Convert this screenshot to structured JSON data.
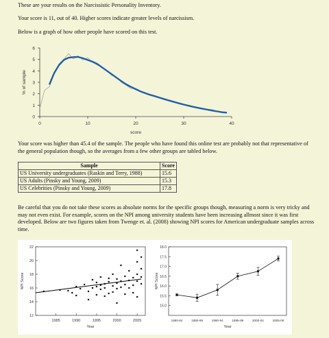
{
  "texts": {
    "intro": "These are your results on the Narcissistic Personality Inventory.",
    "score": "Your score is 11, out of 40. Higher scores indicate greater levels of narcissism.",
    "graph_intro": "Below is a graph of how other people have scored on this test.",
    "result": "Your score was higher than 45.4 of the sample. The people who have found this online test are probably not that representative of the general population though, so the averages from a few other groups are tabled below.",
    "careful": "Be careful that you do not take these scores as absolute norms for the specific groups though, measuring a norm is very tricky and may not even exist. For example, scores on the NPI among university students have been increasing allmost since it was first developed. Below are two figures taken from Twenge et. al. (2008) showing NPI scores for American undergraduate samples across time."
  },
  "table": {
    "headers": [
      "Sample",
      "Score"
    ],
    "rows": [
      [
        "US University undergraduates (Raskin and Terry, 1988)",
        "15.6"
      ],
      [
        "US Adults (Pinsky and Young, 2009)",
        "15.3"
      ],
      [
        "US Celebrities (Pinsky and Young, 2009)",
        "17.8"
      ]
    ]
  },
  "colors": {
    "page_bg": "#f4f4d8",
    "fit_line": "#1f5fa8",
    "raw_line": "#999999"
  },
  "chart_data": [
    {
      "type": "line",
      "xlabel": "score",
      "ylabel": "% of sample",
      "xlim": [
        0,
        40
      ],
      "ylim": [
        0,
        6
      ],
      "xticks": [
        0,
        10,
        20,
        30,
        40
      ],
      "yticks": [
        0,
        1,
        2,
        3,
        4,
        5,
        6
      ],
      "grid": false,
      "series": [
        {
          "role": "smoothed",
          "x": [
            2,
            3,
            4,
            5,
            6,
            7,
            8,
            9,
            10,
            11,
            12,
            13,
            14,
            15,
            16,
            17,
            18,
            19,
            20,
            21,
            22,
            23,
            24,
            25,
            26,
            27,
            28,
            29,
            30,
            31,
            32,
            33,
            34,
            35,
            36,
            37,
            38,
            39
          ],
          "y": [
            2.8,
            3.8,
            4.5,
            4.95,
            5.15,
            5.2,
            5.22,
            5.1,
            4.95,
            4.8,
            4.6,
            4.3,
            4.0,
            3.7,
            3.4,
            3.1,
            2.82,
            2.6,
            2.4,
            2.2,
            2.05,
            1.9,
            1.78,
            1.65,
            1.52,
            1.4,
            1.28,
            1.16,
            1.05,
            0.95,
            0.85,
            0.76,
            0.68,
            0.6,
            0.52,
            0.45,
            0.38,
            0.34
          ]
        },
        {
          "role": "raw",
          "x": [
            0,
            1,
            2,
            3,
            4,
            5,
            6,
            7,
            8,
            9,
            10,
            11,
            12,
            13,
            14,
            15,
            16,
            17,
            18,
            19,
            20,
            21,
            22,
            23,
            24,
            25,
            26,
            27,
            28,
            29,
            30,
            31,
            32,
            33,
            34,
            35,
            36,
            37,
            38,
            39
          ],
          "y": [
            0.7,
            2.3,
            2.6,
            3.7,
            4.6,
            5.0,
            5.5,
            5.05,
            5.3,
            4.95,
            5.15,
            4.75,
            4.5,
            4.35,
            4.0,
            3.6,
            3.45,
            3.0,
            2.75,
            2.45,
            2.45,
            2.2,
            2.0,
            1.85,
            1.8,
            1.6,
            1.55,
            1.35,
            1.3,
            1.15,
            1.05,
            0.95,
            0.85,
            0.8,
            0.7,
            0.65,
            0.6,
            0.45,
            0.4,
            0.3
          ]
        }
      ]
    },
    {
      "type": "scatter",
      "xlabel": "Year",
      "ylabel": "NPI Score",
      "xlim": [
        1980,
        2007
      ],
      "ylim": [
        12,
        22
      ],
      "xticks": [
        1985,
        1990,
        1995,
        2000,
        2005
      ],
      "yticks": [
        12,
        14,
        16,
        18,
        20,
        22
      ],
      "trend": {
        "x": [
          1980,
          2006
        ],
        "y": [
          15.3,
          17.3
        ]
      },
      "points": [
        [
          1982,
          15.5
        ],
        [
          1986,
          15.7
        ],
        [
          1988,
          15.6
        ],
        [
          1989,
          15.3
        ],
        [
          1990,
          14.9
        ],
        [
          1990,
          16.2
        ],
        [
          1991,
          15.9
        ],
        [
          1992,
          16.5
        ],
        [
          1993,
          14.3
        ],
        [
          1993,
          15.5
        ],
        [
          1994,
          16.0
        ],
        [
          1994,
          17.2
        ],
        [
          1995,
          15.0
        ],
        [
          1995,
          16.2
        ],
        [
          1995,
          16.8
        ],
        [
          1996,
          15.8
        ],
        [
          1996,
          16.4
        ],
        [
          1996,
          17.6
        ],
        [
          1997,
          16.0
        ],
        [
          1997,
          16.6
        ],
        [
          1997,
          14.8
        ],
        [
          1998,
          15.2
        ],
        [
          1998,
          16.9
        ],
        [
          1998,
          17.4
        ],
        [
          1999,
          16.3
        ],
        [
          1999,
          15.4
        ],
        [
          1999,
          18.0
        ],
        [
          2000,
          15.9
        ],
        [
          2000,
          16.7
        ],
        [
          2000,
          17.3
        ],
        [
          2000,
          13.8
        ],
        [
          2001,
          16.1
        ],
        [
          2001,
          17.0
        ],
        [
          2001,
          19.3
        ],
        [
          2002,
          15.1
        ],
        [
          2002,
          16.5
        ],
        [
          2002,
          17.7
        ],
        [
          2003,
          16.0
        ],
        [
          2003,
          17.1
        ],
        [
          2003,
          18.5
        ],
        [
          2004,
          16.4
        ],
        [
          2004,
          17.5
        ],
        [
          2004,
          15.3
        ],
        [
          2005,
          17.0
        ],
        [
          2005,
          18.0
        ],
        [
          2005,
          19.8
        ],
        [
          2005,
          21.5
        ],
        [
          2005,
          14.7
        ],
        [
          2006,
          16.6
        ],
        [
          2006,
          17.6
        ],
        [
          2006,
          18.8
        ],
        [
          2006,
          20.5
        ]
      ]
    },
    {
      "type": "line",
      "xlabel": "Year",
      "ylabel": "NPI Score",
      "ylim": [
        14.5,
        18.0
      ],
      "yticks": [
        15.0,
        15.5,
        16.0,
        16.5,
        17.0,
        17.5,
        18.0
      ],
      "categories": [
        "1980-84",
        "1985-89",
        "1990-94",
        "1995-99",
        "2000-04",
        "2005-06"
      ],
      "values": [
        15.55,
        15.4,
        15.8,
        16.5,
        16.75,
        17.4
      ],
      "errors": [
        0.05,
        0.18,
        0.28,
        0.15,
        0.2,
        0.12
      ]
    }
  ]
}
